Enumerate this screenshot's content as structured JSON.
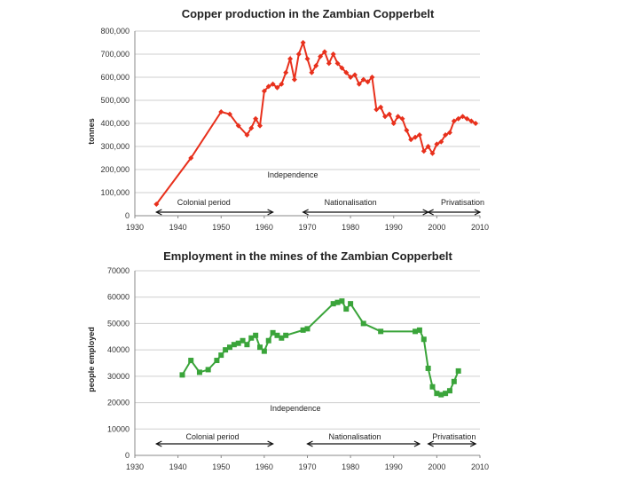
{
  "chart_data": [
    {
      "type": "line",
      "title": "Copper production in the Zambian Copperbelt",
      "ylabel": "tonnes",
      "xlabel": "",
      "xlim": [
        1930,
        2010
      ],
      "ylim": [
        0,
        800000
      ],
      "x_ticks": [
        "1930",
        "1940",
        "1950",
        "1960",
        "1970",
        "1980",
        "1990",
        "2000",
        "2010"
      ],
      "y_ticks": [
        "0",
        "100,000",
        "200,000",
        "300,000",
        "400,000",
        "500,000",
        "600,000",
        "700,000",
        "800,000"
      ],
      "grid": true,
      "color": "#e8301c",
      "marker": "diamond",
      "annotations": {
        "independence": "Independence",
        "colonial": "Colonial period",
        "nationalisation": "Nationalisation",
        "privatisation": "Privatisation"
      },
      "series": [
        {
          "x": [
            1935,
            1943,
            1950,
            1952,
            1954,
            1956,
            1957,
            1958,
            1959,
            1960,
            1961,
            1962,
            1963,
            1964,
            1965,
            1966,
            1967,
            1968,
            1969,
            1970,
            1971,
            1972,
            1973,
            1974,
            1975,
            1976,
            1977,
            1978,
            1979,
            1980,
            1981,
            1982,
            1983,
            1984,
            1985,
            1986,
            1987,
            1988,
            1989,
            1990,
            1991,
            1992,
            1993,
            1994,
            1995,
            1996,
            1997,
            1998,
            1999,
            2000,
            2001,
            2002,
            2003,
            2004,
            2005,
            2006,
            2007,
            2008,
            2009
          ],
          "values": [
            50000,
            250000,
            450000,
            440000,
            390000,
            350000,
            380000,
            420000,
            390000,
            540000,
            560000,
            570000,
            555000,
            570000,
            620000,
            680000,
            590000,
            700000,
            750000,
            680000,
            620000,
            650000,
            690000,
            710000,
            660000,
            700000,
            660000,
            640000,
            620000,
            600000,
            610000,
            570000,
            590000,
            580000,
            600000,
            460000,
            470000,
            430000,
            440000,
            400000,
            430000,
            420000,
            370000,
            330000,
            340000,
            350000,
            280000,
            300000,
            270000,
            310000,
            320000,
            350000,
            360000,
            410000,
            420000,
            430000,
            420000,
            410000,
            400000
          ]
        }
      ]
    },
    {
      "type": "line",
      "title": "Employment in the mines of the Zambian Copperbelt",
      "ylabel": "people employed",
      "xlabel": "",
      "xlim": [
        1930,
        2010
      ],
      "ylim": [
        0,
        70000
      ],
      "x_ticks": [
        "1930",
        "1940",
        "1950",
        "1960",
        "1970",
        "1980",
        "1990",
        "2000",
        "2010"
      ],
      "y_ticks": [
        "0",
        "10000",
        "20000",
        "30000",
        "40000",
        "50000",
        "60000",
        "70000"
      ],
      "grid": true,
      "color": "#3aa43a",
      "marker": "square",
      "annotations": {
        "independence": "Independence",
        "colonial": "Colonial period",
        "nationalisation": "Nationalisation",
        "privatisation": "Privatisation"
      },
      "series": [
        {
          "x": [
            1941,
            1943,
            1945,
            1947,
            1949,
            1950,
            1951,
            1952,
            1953,
            1954,
            1955,
            1956,
            1957,
            1958,
            1959,
            1960,
            1961,
            1962,
            1963,
            1964,
            1965,
            1969,
            1970,
            1976,
            1977,
            1978,
            1979,
            1980,
            1983,
            1987,
            1995,
            1996,
            1997,
            1998,
            1999,
            2000,
            2001,
            2002,
            2003,
            2004,
            2005
          ],
          "values": [
            30500,
            36000,
            31500,
            32500,
            36000,
            38000,
            40000,
            41000,
            42000,
            42500,
            43500,
            42000,
            44500,
            45500,
            41000,
            39500,
            43500,
            46500,
            45500,
            44500,
            45500,
            47500,
            48000,
            57500,
            58000,
            58500,
            55500,
            57500,
            50000,
            47000,
            47000,
            47500,
            44000,
            33000,
            26000,
            23500,
            23000,
            23500,
            24500,
            28000,
            32000
          ]
        }
      ]
    }
  ]
}
